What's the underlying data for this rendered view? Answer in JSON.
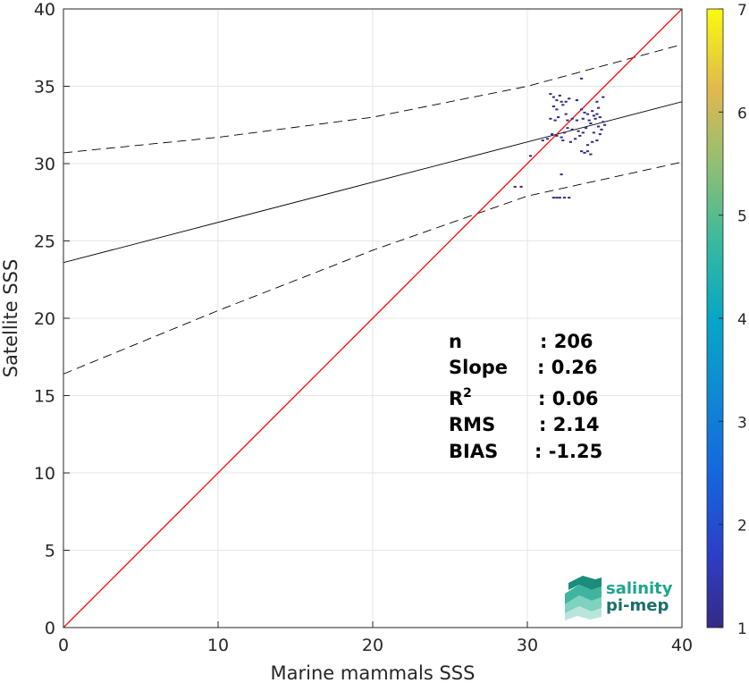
{
  "chart_data": {
    "type": "scatter",
    "subtype": "density scatter",
    "xlabel": "Marine mammals SSS",
    "ylabel": "Satellite SSS",
    "xlim": [
      0,
      40
    ],
    "ylim": [
      0,
      40
    ],
    "xticks": [
      0,
      10,
      20,
      30,
      40
    ],
    "yticks": [
      0,
      5,
      10,
      15,
      20,
      25,
      30,
      35,
      40
    ],
    "grid": true,
    "colorbar": {
      "min": 1,
      "max": 7,
      "ticks": [
        1,
        2,
        3,
        4,
        5,
        6,
        7
      ],
      "colormap": "parula"
    },
    "reference_line": {
      "label": "1:1",
      "color": "#ff0000",
      "from": [
        0,
        0
      ],
      "to": [
        40,
        40
      ]
    },
    "regression_line": {
      "color": "#000000",
      "intercept": 23.6,
      "slope": 0.26
    },
    "confidence_bounds": {
      "color": "#000000",
      "style": "dashed",
      "upper": [
        [
          0,
          30.7
        ],
        [
          10,
          31.7
        ],
        [
          20,
          33.0
        ],
        [
          30,
          35.0
        ],
        [
          40,
          37.7
        ]
      ],
      "lower": [
        [
          0,
          16.4
        ],
        [
          10,
          20.5
        ],
        [
          20,
          24.4
        ],
        [
          30,
          27.9
        ],
        [
          40,
          30.1
        ]
      ]
    },
    "points": [
      [
        29.2,
        28.5
      ],
      [
        29.6,
        28.5
      ],
      [
        30.2,
        30.5
      ],
      [
        31.0,
        31.5
      ],
      [
        31.3,
        31.6
      ],
      [
        31.5,
        34.5
      ],
      [
        31.7,
        34.3
      ],
      [
        31.9,
        34.1
      ],
      [
        32.1,
        34.4
      ],
      [
        32.2,
        34.0
      ],
      [
        31.7,
        33.7
      ],
      [
        31.9,
        33.5
      ],
      [
        32.3,
        33.8
      ],
      [
        32.5,
        34.0
      ],
      [
        32.7,
        34.2
      ],
      [
        31.5,
        32.9
      ],
      [
        31.8,
        32.8
      ],
      [
        32.0,
        33.0
      ],
      [
        32.6,
        32.8
      ],
      [
        32.9,
        32.9
      ],
      [
        33.2,
        32.8
      ],
      [
        33.6,
        32.9
      ],
      [
        34.0,
        32.8
      ],
      [
        34.3,
        33.1
      ],
      [
        34.5,
        33.2
      ],
      [
        34.7,
        33.0
      ],
      [
        34.9,
        32.7
      ],
      [
        35.0,
        32.5
      ],
      [
        34.8,
        32.2
      ],
      [
        34.6,
        32.4
      ],
      [
        33.5,
        33.5
      ],
      [
        33.7,
        33.3
      ],
      [
        33.9,
        33.2
      ],
      [
        34.2,
        33.4
      ],
      [
        34.6,
        33.6
      ],
      [
        34.4,
        32.9
      ],
      [
        34.1,
        32.6
      ],
      [
        33.8,
        32.3
      ],
      [
        33.3,
        32.1
      ],
      [
        32.9,
        32.2
      ],
      [
        32.6,
        32.3
      ],
      [
        32.4,
        32.0
      ],
      [
        32.2,
        31.7
      ],
      [
        31.9,
        31.8
      ],
      [
        31.6,
        31.9
      ],
      [
        32.3,
        31.5
      ],
      [
        32.8,
        31.4
      ],
      [
        33.1,
        31.6
      ],
      [
        33.4,
        31.8
      ],
      [
        33.6,
        32.0
      ],
      [
        34.3,
        32.0
      ],
      [
        34.7,
        31.9
      ],
      [
        34.5,
        31.5
      ],
      [
        34.2,
        31.4
      ],
      [
        33.9,
        31.2
      ],
      [
        33.5,
        30.8
      ],
      [
        33.7,
        30.7
      ],
      [
        33.9,
        30.8
      ],
      [
        34.1,
        30.6
      ],
      [
        32.2,
        29.3
      ],
      [
        31.7,
        27.8
      ],
      [
        31.9,
        27.8
      ],
      [
        32.1,
        27.8
      ],
      [
        32.4,
        27.8
      ],
      [
        32.7,
        27.8
      ],
      [
        34.9,
        34.3
      ],
      [
        34.5,
        34.0
      ],
      [
        33.5,
        35.5
      ],
      [
        33.2,
        34.1
      ],
      [
        32.5,
        33.2
      ]
    ]
  },
  "stats": {
    "rows": [
      {
        "label": "n",
        "value": ": 206"
      },
      {
        "label": "Slope",
        "value": ": 0.26"
      },
      {
        "label": "R",
        "sup": "2",
        "value": ": 0.06"
      },
      {
        "label": "RMS",
        "value": ": 2.14"
      },
      {
        "label": "BIAS",
        "value": ": -1.25"
      }
    ]
  },
  "logo": {
    "line1": "salinity",
    "line2": "pi-mep"
  }
}
